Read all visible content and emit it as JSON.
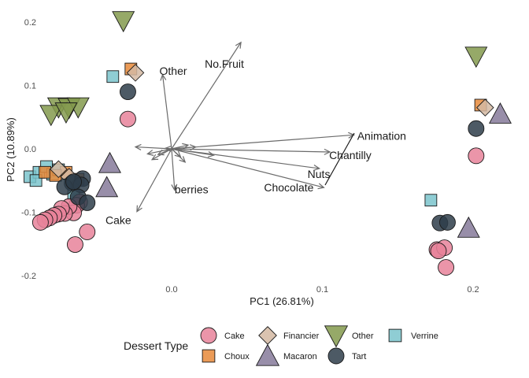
{
  "chart_data": {
    "type": "scatter",
    "title": "",
    "xlabel": "PC1 (26.81%)",
    "ylabel": "PC2 (10.89%)",
    "xlim": [
      -0.115,
      0.225
    ],
    "ylim": [
      -0.215,
      0.22
    ],
    "x_ticks": [
      0.0,
      0.1,
      0.2
    ],
    "x_tick_labels": [
      "0.0",
      "0.1",
      "0.2"
    ],
    "y_ticks": [
      -0.2,
      -0.1,
      0.0,
      0.1,
      0.2
    ],
    "y_tick_labels": [
      "-0.2",
      "-0.1",
      "0.0",
      "0.1",
      "0.2"
    ],
    "grid": false,
    "legend": {
      "title": "Dessert Type",
      "position": "bottom",
      "entries": [
        {
          "label": "Cake",
          "shape": "circle",
          "color": "#E8829A"
        },
        {
          "label": "Choux",
          "shape": "square",
          "color": "#E8893A"
        },
        {
          "label": "Financier",
          "shape": "diamond",
          "color": "#D4B9A2"
        },
        {
          "label": "Macaron",
          "shape": "triangle-up",
          "color": "#867A9A"
        },
        {
          "label": "Other",
          "shape": "triangle-down",
          "color": "#849A4E"
        },
        {
          "label": "Tart",
          "shape": "circle",
          "color": "#2E3D4A"
        },
        {
          "label": "Verrine",
          "shape": "square",
          "color": "#7BC4CD"
        }
      ]
    },
    "series": [
      {
        "name": "Cake",
        "points": [
          [
            -0.029,
            0.047
          ],
          [
            -0.061,
            -0.084
          ],
          [
            -0.063,
            -0.089
          ],
          [
            -0.065,
            -0.101
          ],
          [
            -0.068,
            -0.091
          ],
          [
            -0.071,
            -0.102
          ],
          [
            -0.073,
            -0.094
          ],
          [
            -0.075,
            -0.103
          ],
          [
            -0.078,
            -0.105
          ],
          [
            -0.081,
            -0.109
          ],
          [
            -0.084,
            -0.112
          ],
          [
            -0.087,
            -0.116
          ],
          [
            -0.056,
            -0.131
          ],
          [
            -0.064,
            -0.151
          ],
          [
            0.202,
            -0.011
          ],
          [
            0.176,
            -0.159
          ],
          [
            0.181,
            -0.156
          ],
          [
            0.182,
            -0.187
          ],
          [
            0.177,
            -0.161
          ]
        ]
      },
      {
        "name": "Choux",
        "points": [
          [
            -0.027,
            0.126
          ],
          [
            -0.084,
            -0.037
          ],
          [
            -0.07,
            -0.037
          ],
          [
            -0.062,
            -0.048
          ],
          [
            -0.077,
            -0.042
          ],
          [
            0.205,
            0.069
          ]
        ]
      },
      {
        "name": "Financier",
        "points": [
          [
            -0.024,
            0.12
          ],
          [
            -0.075,
            -0.032
          ],
          [
            -0.068,
            -0.044
          ],
          [
            0.208,
            0.065
          ]
        ]
      },
      {
        "name": "Macaron",
        "points": [
          [
            -0.041,
            -0.023
          ],
          [
            -0.043,
            -0.061
          ],
          [
            0.218,
            0.055
          ],
          [
            0.197,
            -0.125
          ]
        ]
      },
      {
        "name": "Other",
        "points": [
          [
            -0.032,
            0.202
          ],
          [
            -0.075,
            0.066
          ],
          [
            -0.068,
            0.065
          ],
          [
            -0.062,
            0.066
          ],
          [
            -0.08,
            0.054
          ],
          [
            -0.07,
            0.058
          ],
          [
            0.202,
            0.146
          ]
        ]
      },
      {
        "name": "Tart",
        "points": [
          [
            -0.029,
            0.09
          ],
          [
            -0.066,
            -0.054
          ],
          [
            -0.059,
            -0.047
          ],
          [
            -0.06,
            -0.057
          ],
          [
            -0.071,
            -0.06
          ],
          [
            -0.062,
            -0.076
          ],
          [
            -0.056,
            -0.085
          ],
          [
            -0.065,
            -0.052
          ],
          [
            0.202,
            0.032
          ],
          [
            0.178,
            -0.117
          ],
          [
            0.183,
            -0.116
          ]
        ]
      },
      {
        "name": "Verrine",
        "points": [
          [
            -0.039,
            0.114
          ],
          [
            -0.094,
            -0.044
          ],
          [
            -0.088,
            -0.037
          ],
          [
            -0.09,
            -0.05
          ],
          [
            -0.083,
            -0.028
          ],
          [
            -0.079,
            -0.04
          ],
          [
            -0.075,
            -0.033
          ],
          [
            -0.065,
            -0.071
          ],
          [
            0.172,
            -0.081
          ]
        ]
      }
    ],
    "loadings": [
      {
        "label": "No.Fruit",
        "x": 0.046,
        "y": 0.168
      },
      {
        "label": "Other",
        "x": -0.006,
        "y": 0.117
      },
      {
        "label": "Animation",
        "x": 0.121,
        "y": 0.022
      },
      {
        "label": "Chantilly",
        "x": 0.105,
        "y": -0.005
      },
      {
        "label": "Nuts",
        "x": 0.098,
        "y": -0.031
      },
      {
        "label": "Chocolate",
        "x": 0.101,
        "y": -0.061
      },
      {
        "label": "berries",
        "x": 0.002,
        "y": -0.065
      },
      {
        "label": "Cake",
        "x": -0.023,
        "y": -0.099
      }
    ],
    "minor_loadings": [
      [
        -0.024,
        0.003
      ],
      [
        0.028,
        -0.01
      ],
      [
        -0.013,
        -0.017
      ],
      [
        0.009,
        -0.021
      ],
      [
        -0.009,
        -0.009
      ],
      [
        0.016,
        0.003
      ],
      [
        0.006,
        -0.013
      ],
      [
        -0.004,
        0.001
      ],
      [
        0.011,
        0.006
      ],
      [
        -0.016,
        -0.008
      ]
    ]
  }
}
